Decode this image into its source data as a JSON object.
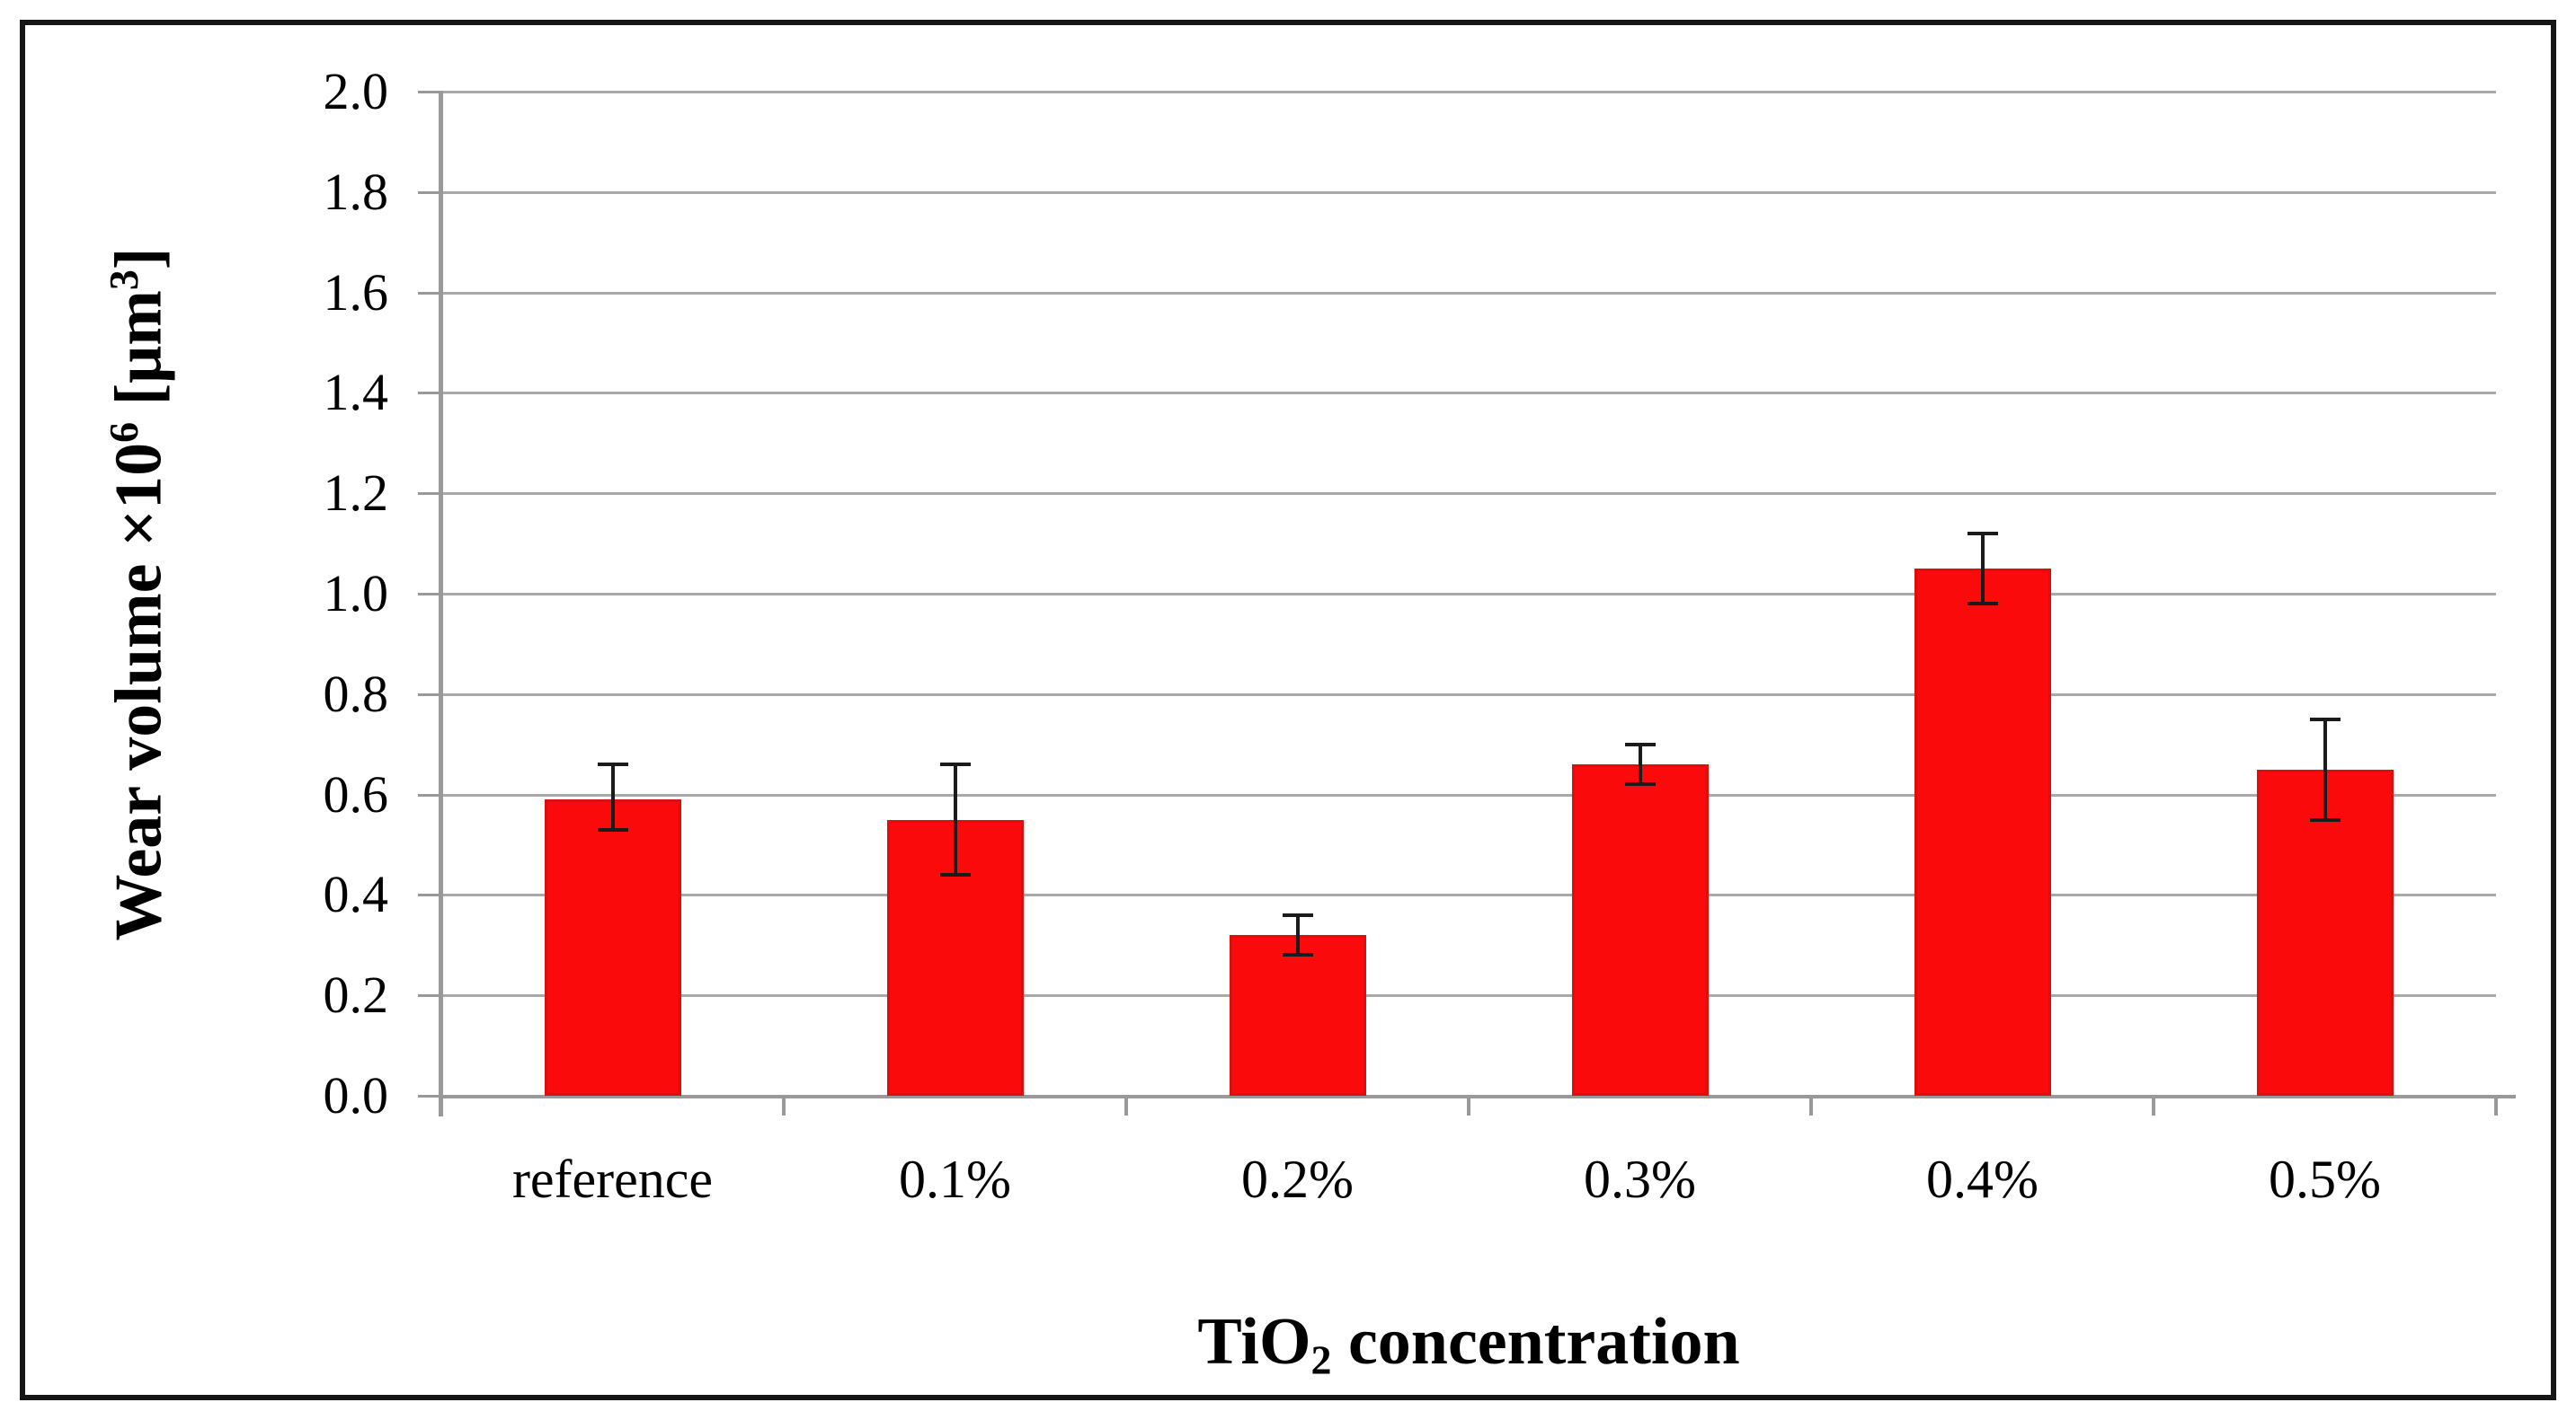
{
  "chart_data": {
    "type": "bar",
    "categories": [
      "reference",
      "0.1%",
      "0.2%",
      "0.3%",
      "0.4%",
      "0.5%"
    ],
    "values": [
      0.59,
      0.55,
      0.32,
      0.66,
      1.05,
      0.65
    ],
    "error_low": [
      0.53,
      0.44,
      0.28,
      0.62,
      0.98,
      0.55
    ],
    "error_high": [
      0.66,
      0.66,
      0.36,
      0.7,
      1.12,
      0.75
    ],
    "title": "",
    "xlabel": "TiO2 concentration",
    "ylabel": "Wear volume ×10⁶ [μm³]",
    "ylim": [
      0.0,
      2.0
    ],
    "ytick_step": 0.2,
    "yticks": [
      "0.0",
      "0.2",
      "0.4",
      "0.6",
      "0.8",
      "1.0",
      "1.2",
      "1.4",
      "1.6",
      "1.8",
      "2.0"
    ],
    "grid": true,
    "legend": false,
    "bar_color": "#fa0a0a",
    "error_bar_color": "#1b1b1b",
    "gridline_color": "#a9a9a9"
  },
  "axis_labels": {
    "y_prefix": "Wear volume ×10",
    "y_sup1": "6",
    "y_mid": " [μm",
    "y_sup2": "3",
    "y_suffix": "]",
    "x_prefix": "TiO",
    "x_sub": "2",
    "x_suffix": " concentration"
  }
}
